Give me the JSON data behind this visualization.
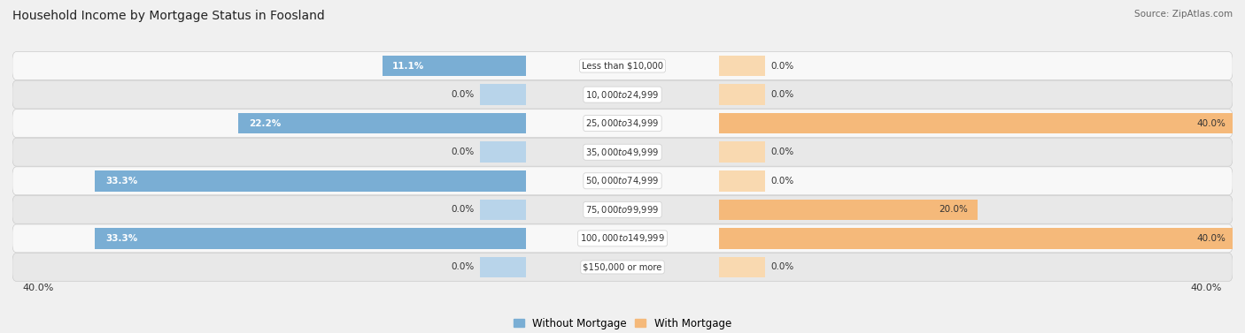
{
  "title": "Household Income by Mortgage Status in Foosland",
  "source": "Source: ZipAtlas.com",
  "categories": [
    "Less than $10,000",
    "$10,000 to $24,999",
    "$25,000 to $34,999",
    "$35,000 to $49,999",
    "$50,000 to $74,999",
    "$75,000 to $99,999",
    "$100,000 to $149,999",
    "$150,000 or more"
  ],
  "without_mortgage": [
    11.1,
    0.0,
    22.2,
    0.0,
    33.3,
    0.0,
    33.3,
    0.0
  ],
  "with_mortgage": [
    0.0,
    0.0,
    40.0,
    0.0,
    0.0,
    20.0,
    40.0,
    0.0
  ],
  "color_without": "#7aaed4",
  "color_with": "#f5b97a",
  "color_without_light": "#b8d4ea",
  "color_with_light": "#f9d9b0",
  "max_val": 40.0,
  "axis_label_left": "40.0%",
  "axis_label_right": "40.0%",
  "legend_without": "Without Mortgage",
  "legend_with": "With Mortgage",
  "bg_color": "#f0f0f0",
  "row_bg_even": "#f8f8f8",
  "row_bg_odd": "#e8e8e8",
  "row_border": "#cccccc",
  "text_dark": "#333333",
  "text_white": "#ffffff",
  "stub_val": 3.5
}
